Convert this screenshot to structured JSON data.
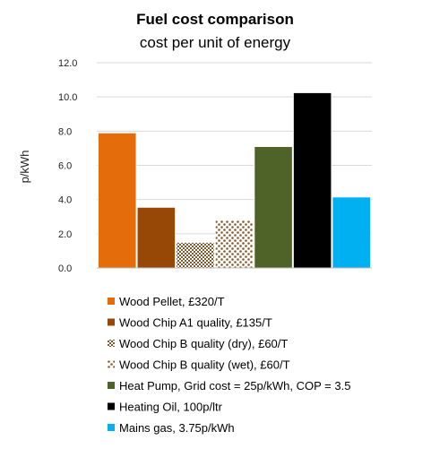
{
  "chart_data": {
    "type": "bar",
    "title": "Fuel cost comparison",
    "subtitle": "cost per unit of energy",
    "ylabel": "p/kWh",
    "xlabel": "",
    "ylim": [
      0,
      12
    ],
    "yticks": [
      "0.0",
      "2.0",
      "4.0",
      "6.0",
      "8.0",
      "10.0",
      "12.0"
    ],
    "grid": true,
    "legend_position": "bottom",
    "series": [
      {
        "name": "Wood Pellet, £320/T",
        "value": 7.9,
        "color": "#e46c0a",
        "pattern": "solid"
      },
      {
        "name": "Wood Chip A1 quality, £135/T",
        "value": 3.55,
        "color": "#974806",
        "pattern": "solid"
      },
      {
        "name": "Wood Chip B quality (dry), £60/T",
        "value": 1.5,
        "color": "#7f5a2a",
        "pattern": "checker"
      },
      {
        "name": "Wood Chip B quality (wet), £60/T",
        "value": 2.8,
        "color": "#8b5a2b",
        "pattern": "dots"
      },
      {
        "name": "Heat Pump, Grid cost = 25p/kWh, COP = 3.5",
        "value": 7.1,
        "color": "#4f6228",
        "pattern": "solid"
      },
      {
        "name": "Heating Oil, 100p/ltr",
        "value": 10.25,
        "color": "#000000",
        "pattern": "solid"
      },
      {
        "name": "Mains gas, 3.75p/kWh",
        "value": 4.15,
        "color": "#00b0f0",
        "pattern": "solid"
      }
    ]
  }
}
